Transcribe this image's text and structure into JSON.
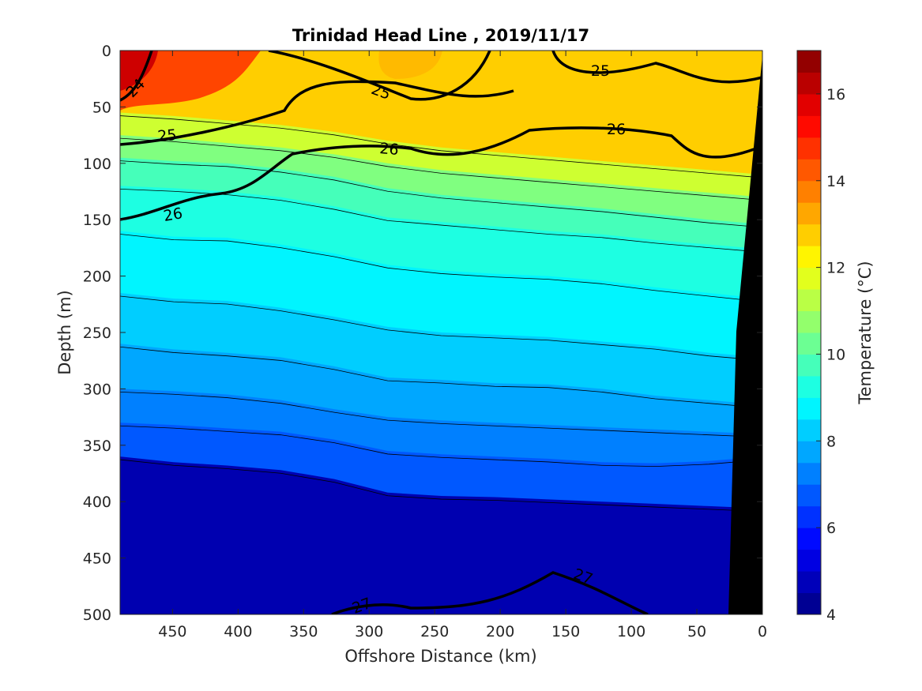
{
  "chart_data": {
    "type": "heatmap",
    "title": "Trinidad Head Line , 2019/11/17",
    "xlabel": "Offshore Distance (km)",
    "ylabel": "Depth (m)",
    "colorbar_label": "Temperature (°C)",
    "xlim": [
      490,
      0
    ],
    "ylim": [
      0,
      500
    ],
    "x_ticks": [
      "450",
      "400",
      "350",
      "300",
      "250",
      "200",
      "150",
      "100",
      "50",
      "0"
    ],
    "y_ticks": [
      "0",
      "50",
      "100",
      "150",
      "200",
      "250",
      "300",
      "350",
      "400",
      "450",
      "500"
    ],
    "colorbar_ticks": [
      "4",
      "6",
      "8",
      "10",
      "12",
      "14",
      "16"
    ],
    "colorbar_range": [
      4,
      17
    ],
    "colorbar_step": 0.5,
    "temperature_isotherms": [
      {
        "temperature": 6.5,
        "depth": [
          360,
          365,
          368,
          372,
          380,
          392,
          395,
          396,
          398,
          400,
          402,
          404,
          406
        ]
      },
      {
        "temperature": 7.0,
        "depth": [
          330,
          332,
          335,
          338,
          345,
          355,
          358,
          360,
          362,
          365,
          366,
          364,
          360
        ]
      },
      {
        "temperature": 7.5,
        "depth": [
          300,
          302,
          305,
          310,
          318,
          325,
          328,
          330,
          332,
          334,
          336,
          338,
          340
        ]
      },
      {
        "temperature": 8.0,
        "depth": [
          260,
          265,
          268,
          272,
          280,
          290,
          292,
          295,
          296,
          300,
          306,
          310,
          314
        ]
      },
      {
        "temperature": 8.5,
        "depth": [
          215,
          220,
          222,
          228,
          236,
          245,
          250,
          252,
          254,
          258,
          262,
          268,
          272
        ]
      },
      {
        "temperature": 9.0,
        "depth": [
          160,
          165,
          166,
          172,
          180,
          190,
          195,
          198,
          200,
          204,
          210,
          215,
          220
        ]
      },
      {
        "temperature": 9.5,
        "depth": [
          120,
          122,
          125,
          130,
          138,
          148,
          152,
          156,
          160,
          163,
          168,
          172,
          176
        ]
      },
      {
        "temperature": 10.0,
        "depth": [
          95,
          98,
          100,
          105,
          112,
          122,
          128,
          132,
          136,
          140,
          145,
          150,
          154
        ]
      },
      {
        "temperature": 11.0,
        "depth": [
          75,
          78,
          82,
          86,
          92,
          100,
          106,
          110,
          114,
          118,
          122,
          126,
          130
        ]
      },
      {
        "temperature": 12.0,
        "depth": [
          55,
          58,
          62,
          66,
          72,
          80,
          86,
          90,
          94,
          98,
          102,
          106,
          110
        ]
      }
    ],
    "density_contours": [
      {
        "sigma": 24,
        "label": "24"
      },
      {
        "sigma": 25,
        "label": "25",
        "labels_shown": 3
      },
      {
        "sigma": 26,
        "label": "26",
        "labels_shown": 3
      },
      {
        "sigma": 27,
        "label": "27",
        "labels_shown": 2
      }
    ],
    "bottom_mask": "black",
    "grid": false,
    "legend": "colorbar-right"
  }
}
